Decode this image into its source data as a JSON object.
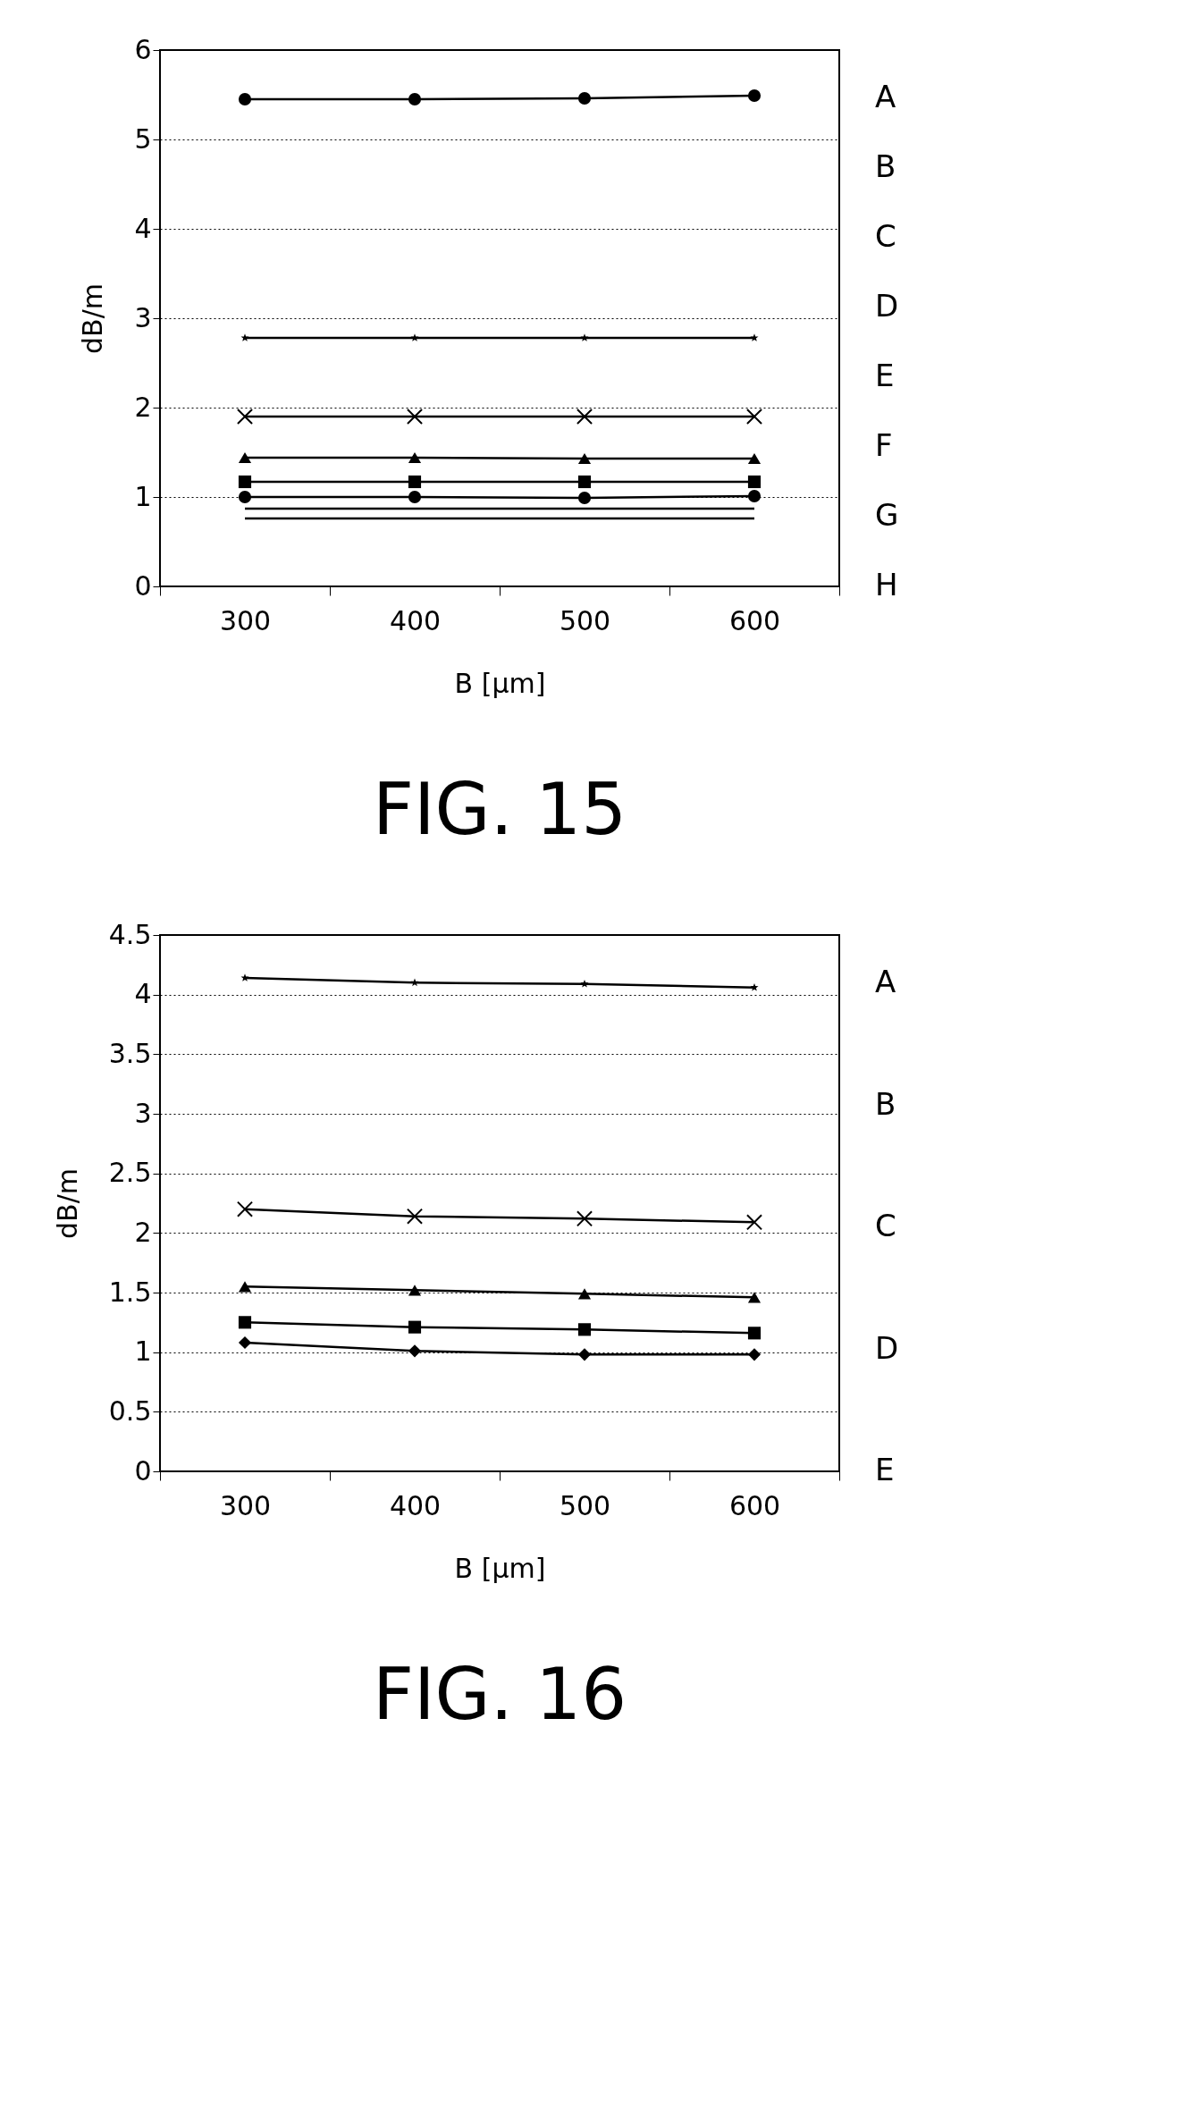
{
  "chart_data": [
    {
      "type": "line",
      "title": "FIG. 15",
      "xlabel": "B [μm]",
      "ylabel": "dB/m",
      "categories": [
        "300",
        "400",
        "500",
        "600"
      ],
      "ylim": [
        0,
        6
      ],
      "yticks": [
        0,
        1,
        2,
        3,
        4,
        5,
        6
      ],
      "grid": "y",
      "line_style": "solid",
      "series": [
        {
          "color": "#000000",
          "marker": "circle",
          "values": [
            5.45,
            5.45,
            5.46,
            5.49
          ]
        },
        {
          "color": "#000000",
          "marker": "star",
          "values": [
            2.78,
            2.78,
            2.78,
            2.78
          ]
        },
        {
          "color": "#000000",
          "marker": "cross",
          "values": [
            1.9,
            1.9,
            1.9,
            1.9
          ]
        },
        {
          "color": "#000000",
          "marker": "triangle",
          "values": [
            1.44,
            1.44,
            1.43,
            1.43
          ]
        },
        {
          "color": "#000000",
          "marker": "square",
          "values": [
            1.17,
            1.17,
            1.17,
            1.17
          ]
        },
        {
          "color": "#000000",
          "marker": "circle",
          "values": [
            1.0,
            1.0,
            0.99,
            1.01
          ]
        },
        {
          "color": "#000000",
          "marker": "none",
          "values": [
            0.87,
            0.87,
            0.87,
            0.87
          ]
        },
        {
          "color": "#000000",
          "marker": "none",
          "values": [
            0.76,
            0.76,
            0.76,
            0.76
          ]
        }
      ],
      "annotations": [
        "A",
        "B",
        "C",
        "D",
        "E",
        "F",
        "G",
        "H"
      ]
    },
    {
      "type": "line",
      "title": "FIG. 16",
      "xlabel": "B [μm]",
      "ylabel": "dB/m",
      "categories": [
        "300",
        "400",
        "500",
        "600"
      ],
      "ylim": [
        0,
        4.5
      ],
      "yticks": [
        0,
        0.5,
        1,
        1.5,
        2,
        2.5,
        3,
        3.5,
        4,
        4.5
      ],
      "grid": "y",
      "line_style": "solid",
      "series": [
        {
          "color": "#000000",
          "marker": "star",
          "values": [
            4.14,
            4.1,
            4.09,
            4.06
          ]
        },
        {
          "color": "#000000",
          "marker": "cross",
          "values": [
            2.2,
            2.14,
            2.12,
            2.09
          ]
        },
        {
          "color": "#000000",
          "marker": "triangle",
          "values": [
            1.55,
            1.52,
            1.49,
            1.46
          ]
        },
        {
          "color": "#000000",
          "marker": "square",
          "values": [
            1.25,
            1.21,
            1.19,
            1.16
          ]
        },
        {
          "color": "#000000",
          "marker": "diamond",
          "values": [
            1.08,
            1.01,
            0.98,
            0.98
          ]
        }
      ],
      "annotations": [
        "A",
        "B",
        "C",
        "D",
        "E"
      ]
    }
  ]
}
